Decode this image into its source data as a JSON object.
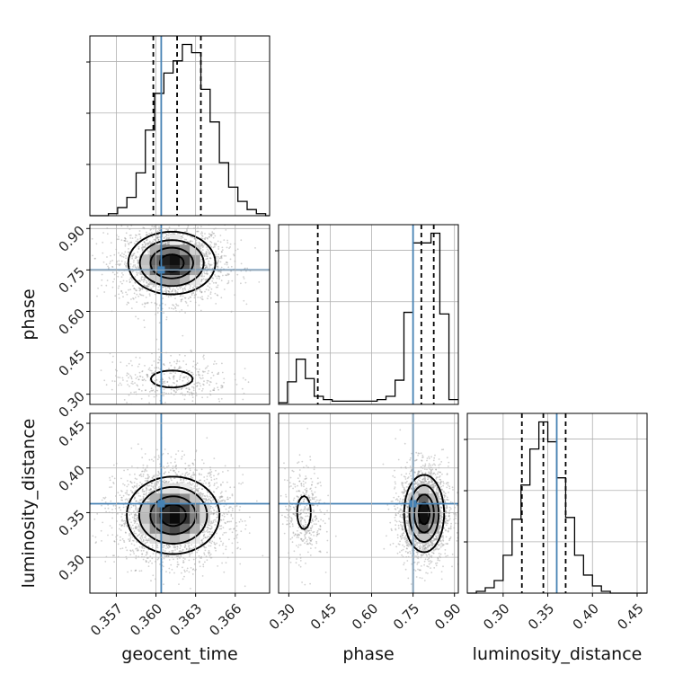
{
  "chart_data": {
    "type": "corner",
    "title": "",
    "parameters": [
      "geocent_time",
      "phase",
      "luminosity_distance"
    ],
    "truths": {
      "geocent_time": 0.3604,
      "phase": 0.75,
      "luminosity_distance": 0.36
    },
    "colors": {
      "truth": "#4682b4",
      "hist": "#000000",
      "grid": "#b0b0b0",
      "scatter": "#9a9a9a"
    },
    "quantiles": {
      "geocent_time": [
        0.3598,
        0.3616,
        0.3634
      ],
      "phase": [
        0.405,
        0.78,
        0.825
      ],
      "luminosity_distance": [
        0.321,
        0.345,
        0.37
      ]
    },
    "axes": {
      "geocent_time": {
        "range": [
          0.355,
          0.3686
        ],
        "ticks": [
          0.357,
          0.36,
          0.363,
          0.366
        ],
        "tick_labels": [
          "0.357",
          "0.360",
          "0.363",
          "0.366"
        ]
      },
      "phase": {
        "range": [
          0.263,
          0.914
        ],
        "ticks": [
          0.3,
          0.45,
          0.6,
          0.75,
          0.9
        ],
        "tick_labels": [
          "0.30",
          "0.45",
          "0.60",
          "0.75",
          "0.90"
        ]
      },
      "luminosity_distance": {
        "range": [
          0.2599,
          0.4611
        ],
        "ticks": [
          0.3,
          0.35,
          0.4,
          0.45
        ],
        "tick_labels": [
          "0.30",
          "0.35",
          "0.40",
          "0.45"
        ]
      }
    },
    "histograms": {
      "geocent_time": {
        "bins": [
          0.355,
          0.3557,
          0.3564,
          0.3571,
          0.3578,
          0.3585,
          0.3592,
          0.3599,
          0.3606,
          0.3613,
          0.362,
          0.3627,
          0.3634,
          0.3641,
          0.3648,
          0.3655,
          0.3662,
          0.3669,
          0.3676,
          0.3683,
          0.3686
        ],
        "counts": [
          0,
          0,
          1,
          4,
          9,
          21,
          42,
          60,
          70,
          76,
          84,
          80,
          62,
          46,
          26,
          14,
          7,
          3,
          1,
          0
        ]
      },
      "phase": {
        "bins": [
          0.263,
          0.295,
          0.327,
          0.36,
          0.392,
          0.425,
          0.457,
          0.49,
          0.522,
          0.555,
          0.587,
          0.62,
          0.652,
          0.685,
          0.717,
          0.75,
          0.782,
          0.815,
          0.847,
          0.88,
          0.914
        ],
        "counts": [
          1,
          14,
          28,
          16,
          5,
          3,
          2,
          2,
          2,
          2,
          2,
          3,
          5,
          15,
          57,
          100,
          100,
          106,
          56,
          3
        ]
      },
      "luminosity_distance": {
        "bins": [
          0.26,
          0.27,
          0.28,
          0.29,
          0.3,
          0.31,
          0.32,
          0.33,
          0.34,
          0.35,
          0.36,
          0.37,
          0.38,
          0.39,
          0.4,
          0.41,
          0.42,
          0.43,
          0.44,
          0.45,
          0.461
        ],
        "counts": [
          0,
          1,
          3,
          7,
          21,
          41,
          60,
          80,
          95,
          84,
          64,
          42,
          21,
          10,
          4,
          1,
          0,
          0,
          0,
          0
        ]
      }
    },
    "density_peaks": {
      "geocent_time__phase": [
        {
          "x": 0.3612,
          "y": 0.775,
          "sx": 0.0016,
          "sy": 0.055,
          "w": 0.85
        },
        {
          "x": 0.3612,
          "y": 0.355,
          "sx": 0.0018,
          "sy": 0.035,
          "w": 0.15
        }
      ],
      "geocent_time__luminosity_distance": [
        {
          "x": 0.3613,
          "y": 0.347,
          "sx": 0.0017,
          "sy": 0.021,
          "w": 1.0
        }
      ],
      "phase__luminosity_distance": [
        {
          "x": 0.79,
          "y": 0.349,
          "sx": 0.035,
          "sy": 0.021,
          "w": 0.85
        },
        {
          "x": 0.355,
          "y": 0.35,
          "sx": 0.028,
          "sy": 0.021,
          "w": 0.15
        }
      ]
    }
  }
}
